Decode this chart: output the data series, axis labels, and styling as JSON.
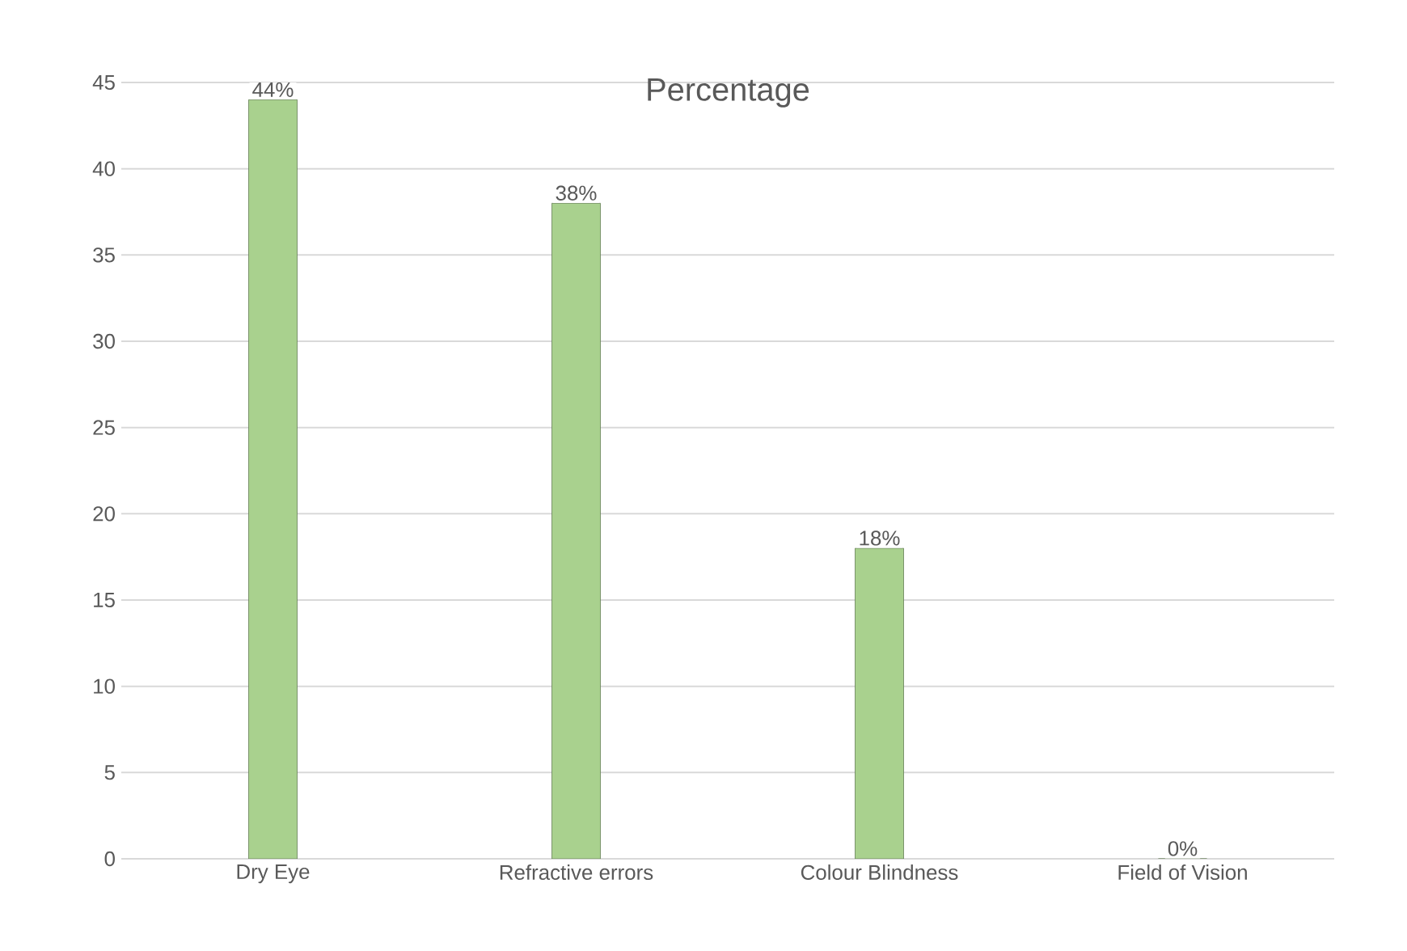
{
  "chart_data": {
    "type": "bar",
    "title": "Percentage",
    "categories": [
      "Dry Eye",
      "Refractive errors",
      "Colour Blindness",
      "Field of Vision"
    ],
    "values": [
      44,
      38,
      18,
      0
    ],
    "value_labels": [
      "44%",
      "38%",
      "18%",
      "0%"
    ],
    "color": "#a9d18e",
    "ylim": [
      0,
      45
    ],
    "yticks": [
      0,
      5,
      10,
      15,
      20,
      25,
      30,
      35,
      40,
      45
    ],
    "grid": "y"
  }
}
